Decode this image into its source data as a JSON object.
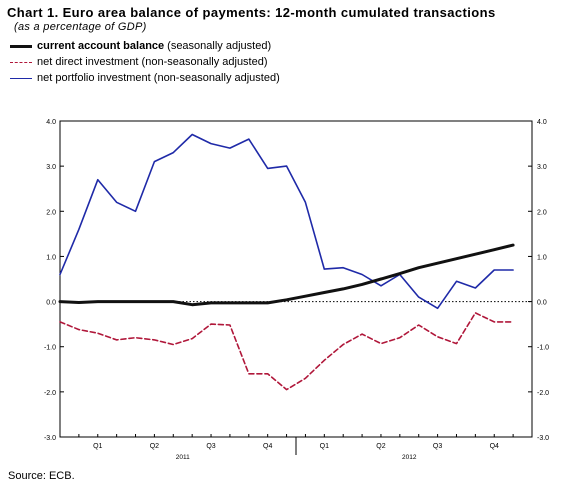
{
  "title": "Chart 1. Euro area balance of payments: 12-month cumulated transactions",
  "subtitle": "(as a percentage of GDP)",
  "source": "Source: ECB.",
  "legend": [
    {
      "main": "current account balance",
      "rest": "(seasonally adjusted)",
      "style": "sw-current"
    },
    {
      "main": "",
      "rest": "net direct investment (non-seasonally adjusted)",
      "style": "sw-direct"
    },
    {
      "main": "",
      "rest": "net portfolio investment (non-seasonally adjusted)",
      "style": "sw-portfolio"
    }
  ],
  "chart_data": {
    "type": "line",
    "ylim": [
      -3.0,
      4.0
    ],
    "y_ticks": [
      "4.0",
      "3.0",
      "2.0",
      "1.0",
      "0.0",
      "-1.0",
      "-2.0",
      "-3.0"
    ],
    "y_tick_values": [
      4,
      3,
      2,
      1,
      0,
      -1,
      -2,
      -3
    ],
    "x_quarter_labels": [
      {
        "label": "Q1",
        "month": 2
      },
      {
        "label": "Q2",
        "month": 5
      },
      {
        "label": "Q3",
        "month": 8
      },
      {
        "label": "Q4",
        "month": 11
      },
      {
        "label": "Q1",
        "month": 14
      },
      {
        "label": "Q2",
        "month": 17
      },
      {
        "label": "Q3",
        "month": 20
      },
      {
        "label": "Q4",
        "month": 23
      }
    ],
    "x_year_labels": [
      {
        "label": "2011",
        "month": 6.5
      },
      {
        "label": "2012",
        "month": 18.5
      }
    ],
    "x_range": [
      0,
      25
    ],
    "grid": false,
    "reference_line": 0,
    "series": [
      {
        "name": "current account balance",
        "color": "#111111",
        "dash": "",
        "width": 3,
        "x": [
          0,
          1,
          2,
          3,
          4,
          5,
          6,
          7,
          8,
          9,
          10,
          11,
          12,
          13,
          14,
          15,
          16,
          17,
          18,
          19,
          20,
          21,
          22,
          23,
          24
        ],
        "values": [
          0.0,
          -0.02,
          0.0,
          0.0,
          0.0,
          0.0,
          0.0,
          -0.07,
          -0.03,
          -0.03,
          -0.03,
          -0.03,
          0.04,
          0.12,
          0.2,
          0.28,
          0.38,
          0.5,
          0.62,
          0.75,
          0.85,
          0.95,
          1.05,
          1.15,
          1.25
        ]
      },
      {
        "name": "net direct investment",
        "color": "#b0173a",
        "dash": "5,3",
        "width": 1.6,
        "x": [
          0,
          1,
          2,
          3,
          4,
          5,
          6,
          7,
          8,
          9,
          10,
          11,
          12,
          13,
          14,
          15,
          16,
          17,
          18,
          19,
          20,
          21,
          22,
          23,
          24
        ],
        "values": [
          -0.45,
          -0.62,
          -0.7,
          -0.85,
          -0.8,
          -0.85,
          -0.95,
          -0.82,
          -0.5,
          -0.52,
          -1.6,
          -1.6,
          -1.95,
          -1.7,
          -1.3,
          -0.95,
          -0.72,
          -0.93,
          -0.8,
          -0.52,
          -0.78,
          -0.93,
          -0.25,
          -0.45,
          -0.45
        ]
      },
      {
        "name": "net portfolio investment",
        "color": "#1f2aa8",
        "dash": "",
        "width": 1.6,
        "x": [
          0,
          1,
          2,
          3,
          4,
          5,
          6,
          7,
          8,
          9,
          10,
          11,
          12,
          13,
          14,
          15,
          16,
          17,
          18,
          19,
          20,
          21,
          22,
          23,
          24
        ],
        "values": [
          0.6,
          1.6,
          2.7,
          2.2,
          2.0,
          3.1,
          3.3,
          3.7,
          3.5,
          3.4,
          3.6,
          2.95,
          3.0,
          2.2,
          0.72,
          0.75,
          0.6,
          0.35,
          0.6,
          0.1,
          -0.15,
          0.45,
          0.3,
          0.7,
          0.7
        ]
      }
    ]
  }
}
